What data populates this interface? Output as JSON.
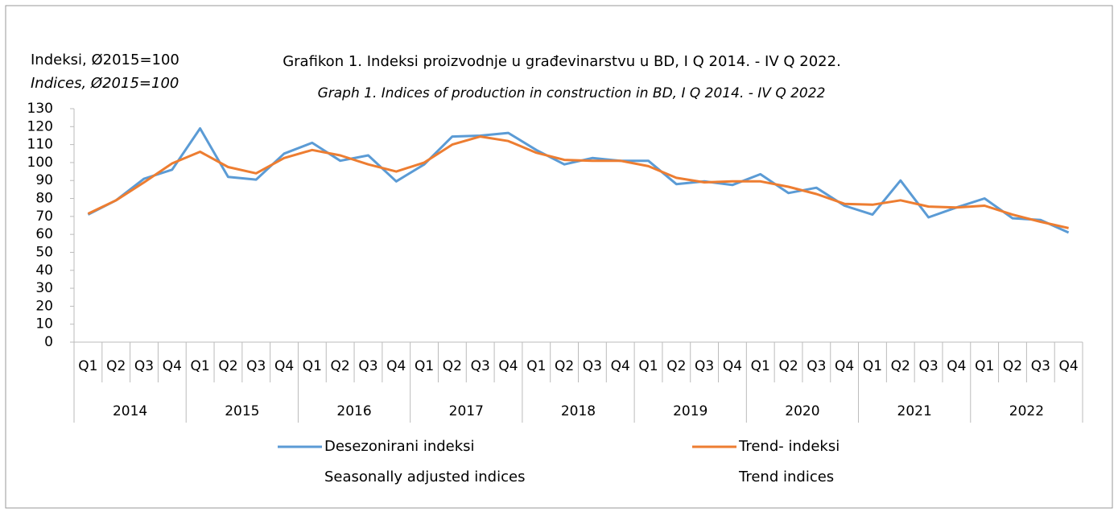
{
  "chart_data": {
    "type": "line",
    "title": "Grafikon 1. Indeksi proizvodnje u građevinarstvu u BD, I Q 2014. - IV Q 2022.",
    "subtitle": "Graph 1. Indices of production in construction in BD, I Q 2014. - IV Q 2022",
    "y_label": "Indeksi, Ø2015=100",
    "y_label_en": "Indices, Ø2015=100",
    "categories": [
      "Q1",
      "Q2",
      "Q3",
      "Q4",
      "Q1",
      "Q2",
      "Q3",
      "Q4",
      "Q1",
      "Q2",
      "Q3",
      "Q4",
      "Q1",
      "Q2",
      "Q3",
      "Q4",
      "Q1",
      "Q2",
      "Q3",
      "Q4",
      "Q1",
      "Q2",
      "Q3",
      "Q4",
      "Q1",
      "Q2",
      "Q3",
      "Q4",
      "Q1",
      "Q2",
      "Q3",
      "Q4",
      "Q1",
      "Q2",
      "Q3",
      "Q4"
    ],
    "year_groups": [
      "2014",
      "2015",
      "2016",
      "2017",
      "2018",
      "2019",
      "2020",
      "2021",
      "2022"
    ],
    "ylim": [
      0,
      130
    ],
    "yticks": [
      0,
      10,
      20,
      30,
      40,
      50,
      60,
      70,
      80,
      90,
      100,
      110,
      120,
      130
    ],
    "series": [
      {
        "name": "Desezonirani indeksi",
        "name_en": "Seasonally adjusted indices",
        "color": "#5b9bd5",
        "values": [
          71,
          79,
          91,
          96,
          119,
          92,
          90.5,
          105,
          111,
          101,
          104,
          89.5,
          99,
          114.5,
          115,
          116.5,
          107,
          99,
          102.5,
          101,
          101,
          88,
          89.5,
          87.5,
          93.5,
          83,
          86,
          76,
          71,
          90,
          69.5,
          75,
          80,
          69,
          68,
          61
        ]
      },
      {
        "name": "Trend- indeksi",
        "name_en": "Trend indices",
        "color": "#ed7d31",
        "values": [
          71.5,
          79,
          89,
          99.5,
          106,
          97.5,
          94,
          102.5,
          107,
          104,
          99,
          95,
          100,
          110,
          114.5,
          112,
          105.5,
          101.5,
          101,
          101,
          98,
          91.5,
          89,
          89.5,
          89.5,
          86.5,
          82.5,
          77,
          76.5,
          79,
          75.5,
          75,
          76,
          71,
          67,
          63.5
        ]
      }
    ]
  }
}
